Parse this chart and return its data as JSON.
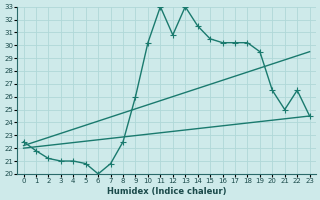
{
  "xlabel": "Humidex (Indice chaleur)",
  "ylabel": "",
  "xlim": [
    -0.5,
    23.5
  ],
  "ylim": [
    20,
    33
  ],
  "yticks": [
    20,
    21,
    22,
    23,
    24,
    25,
    26,
    27,
    28,
    29,
    30,
    31,
    32,
    33
  ],
  "xticks": [
    0,
    1,
    2,
    3,
    4,
    5,
    6,
    7,
    8,
    9,
    10,
    11,
    12,
    13,
    14,
    15,
    16,
    17,
    18,
    19,
    20,
    21,
    22,
    23
  ],
  "bg_color": "#ceeaea",
  "grid_color": "#b0d8d8",
  "line_color": "#1a7a6e",
  "lines": [
    {
      "x": [
        0,
        1,
        2,
        3,
        4,
        5,
        6,
        7,
        8,
        9,
        10,
        11,
        12,
        13,
        14,
        15,
        16,
        17,
        18,
        19,
        20,
        21,
        22,
        23
      ],
      "y": [
        22.5,
        21.8,
        21.2,
        21.0,
        21.0,
        20.8,
        20.0,
        20.8,
        22.5,
        26.0,
        30.2,
        33.0,
        30.8,
        33.0,
        31.5,
        30.5,
        30.2,
        30.2,
        30.2,
        29.5,
        26.5,
        25.0,
        26.5,
        24.5
      ],
      "marker": "+",
      "linewidth": 1.0,
      "markersize": 4
    },
    {
      "x": [
        0,
        23
      ],
      "y": [
        22.2,
        29.5
      ],
      "marker": null,
      "linewidth": 1.0,
      "markersize": 3
    },
    {
      "x": [
        0,
        23
      ],
      "y": [
        22.0,
        24.5
      ],
      "marker": null,
      "linewidth": 1.0,
      "markersize": 3
    }
  ]
}
